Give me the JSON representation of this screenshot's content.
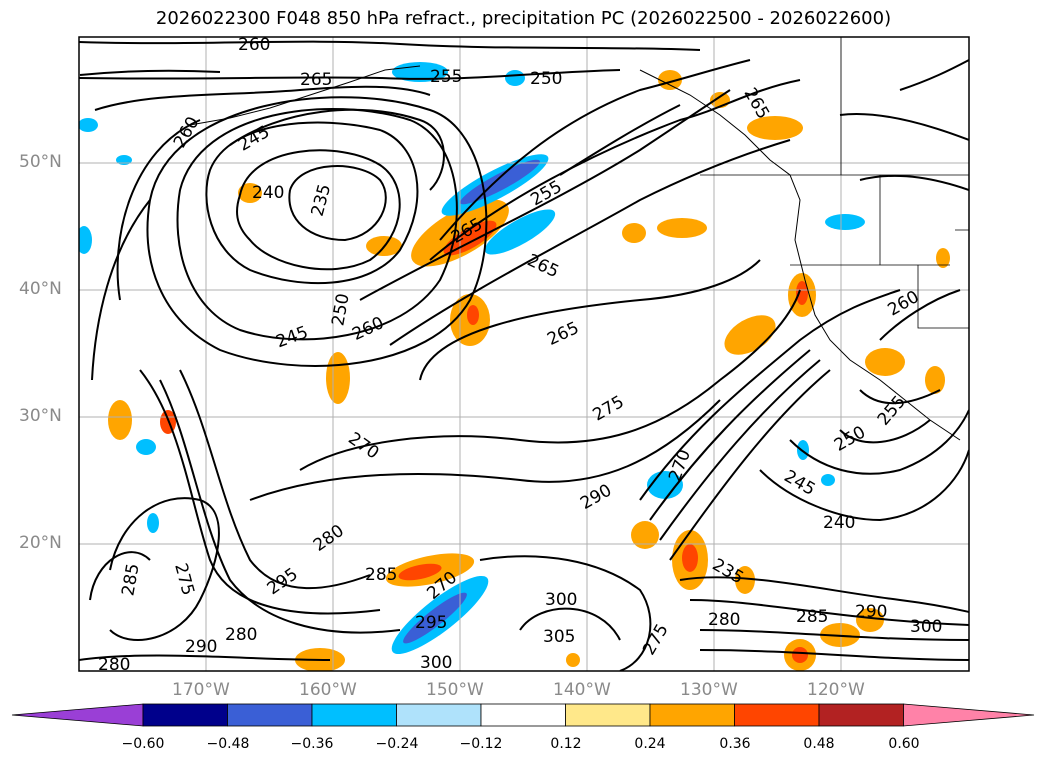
{
  "title": "2026022300 F048 850 hPa refract., precipitation PC (2026022500 - 2026022600)",
  "lat_labels": [
    "50°N",
    "40°N",
    "30°N",
    "20°N"
  ],
  "lon_labels": [
    "170°W",
    "160°W",
    "150°W",
    "140°W",
    "130°W",
    "120°W"
  ],
  "contour_labels": [
    "260",
    "265",
    "255",
    "250",
    "260",
    "245",
    "240",
    "235",
    "250",
    "245",
    "260",
    "265",
    "265",
    "265",
    "255",
    "270",
    "275",
    "280",
    "290",
    "285",
    "270",
    "295",
    "300",
    "305",
    "275",
    "280",
    "285",
    "290",
    "295",
    "300",
    "280",
    "235",
    "240",
    "245",
    "250",
    "255",
    "260",
    "265",
    "270",
    "275",
    "280",
    "285",
    "290",
    "300"
  ],
  "colorbar": {
    "ticks": [
      "−0.60",
      "−0.48",
      "−0.36",
      "−0.24",
      "−0.12",
      "0.12",
      "0.24",
      "0.36",
      "0.48",
      "0.60"
    ],
    "colors": [
      "#9a3fd6",
      "#00008b",
      "#3a5fd6",
      "#00bfff",
      "#afe2fb",
      "#ffffff",
      "#ffe88a",
      "#ffa500",
      "#ff4500",
      "#b22222",
      "#ff82a8"
    ]
  }
}
